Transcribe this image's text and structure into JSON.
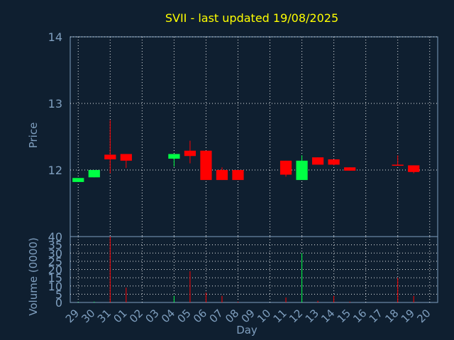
{
  "chart_data": [
    {
      "type": "candlestick",
      "title": "SVII - last updated 19/08/2025",
      "ylabel": "Price",
      "ylim": [
        11.0,
        14.0
      ],
      "yticks": [
        "12",
        "13",
        "14"
      ],
      "grid": true,
      "up_color": "#00ff44",
      "down_color": "#ff0000",
      "x": [
        "29",
        "30",
        "31",
        "01",
        "02",
        "03",
        "04",
        "05",
        "06",
        "07",
        "08",
        "09",
        "10",
        "11",
        "12",
        "13",
        "14",
        "15",
        "16",
        "17",
        "18",
        "19",
        "20"
      ],
      "candles": [
        {
          "day": "29",
          "open": 11.82,
          "high": 11.88,
          "low": 11.82,
          "close": 11.88
        },
        {
          "day": "30",
          "open": 11.89,
          "high": 12.0,
          "low": 11.89,
          "close": 12.0
        },
        {
          "day": "31",
          "open": 12.23,
          "high": 12.75,
          "low": 11.95,
          "close": 12.16
        },
        {
          "day": "01",
          "open": 12.24,
          "high": 12.24,
          "low": 12.03,
          "close": 12.14
        },
        {
          "day": "04",
          "open": 12.17,
          "high": 12.24,
          "low": 12.05,
          "close": 12.24
        },
        {
          "day": "05",
          "open": 12.29,
          "high": 12.44,
          "low": 12.1,
          "close": 12.21
        },
        {
          "day": "06",
          "open": 12.29,
          "high": 12.29,
          "low": 11.85,
          "close": 11.85
        },
        {
          "day": "07",
          "open": 12.0,
          "high": 12.04,
          "low": 11.85,
          "close": 11.85
        },
        {
          "day": "08",
          "open": 12.0,
          "high": 12.0,
          "low": 11.85,
          "close": 11.85
        },
        {
          "day": "11",
          "open": 12.14,
          "high": 12.14,
          "low": 11.9,
          "close": 11.93
        },
        {
          "day": "12",
          "open": 11.85,
          "high": 12.22,
          "low": 11.85,
          "close": 12.14
        },
        {
          "day": "13",
          "open": 12.19,
          "high": 12.19,
          "low": 12.08,
          "close": 12.08
        },
        {
          "day": "14",
          "open": 12.16,
          "high": 12.16,
          "low": 12.07,
          "close": 12.08
        },
        {
          "day": "15",
          "open": 12.04,
          "high": 12.04,
          "low": 11.99,
          "close": 11.99
        },
        {
          "day": "18",
          "open": 12.08,
          "high": 12.22,
          "low": 12.07,
          "close": 12.07
        },
        {
          "day": "19",
          "open": 12.07,
          "high": 12.07,
          "low": 11.95,
          "close": 11.97
        }
      ]
    },
    {
      "type": "bar",
      "ylabel": "Volume (0000)",
      "xlabel": "Day",
      "ylim": [
        0,
        40
      ],
      "yticks": [
        "0",
        "5",
        "10",
        "15",
        "20",
        "25",
        "30",
        "35",
        "40"
      ],
      "grid": true,
      "categories": [
        "29",
        "30",
        "31",
        "01",
        "02",
        "03",
        "04",
        "05",
        "06",
        "07",
        "08",
        "09",
        "10",
        "11",
        "12",
        "13",
        "14",
        "15",
        "16",
        "17",
        "18",
        "19",
        "20"
      ],
      "values": [
        0.3,
        0.5,
        40,
        9,
        0,
        0,
        4,
        19,
        6,
        4,
        0.5,
        0,
        0,
        3,
        30,
        1,
        4,
        0.5,
        0,
        0,
        15,
        4,
        0
      ],
      "bar_colors": [
        "#00ff44",
        "#00ff44",
        "#ff0000",
        "#ff0000",
        "#ff0000",
        "#ff0000",
        "#00ff44",
        "#ff0000",
        "#ff0000",
        "#ff0000",
        "#ff0000",
        "#ff0000",
        "#ff0000",
        "#ff0000",
        "#00ff44",
        "#ff0000",
        "#ff0000",
        "#ff0000",
        "#ff0000",
        "#ff0000",
        "#ff0000",
        "#ff0000",
        "#ff0000"
      ]
    }
  ]
}
